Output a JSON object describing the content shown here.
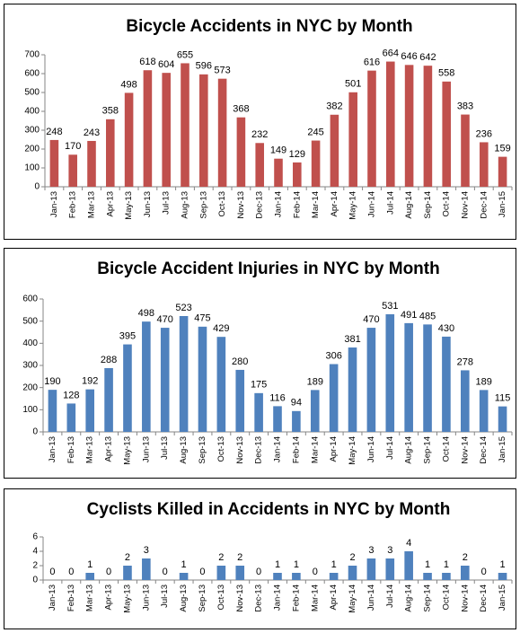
{
  "chart_data": [
    {
      "type": "bar",
      "title": "Bicycle Accidents in NYC by Month",
      "categories": [
        "Jan-13",
        "Feb-13",
        "Mar-13",
        "Apr-13",
        "May-13",
        "Jun-13",
        "Jul-13",
        "Aug-13",
        "Sep-13",
        "Oct-13",
        "Nov-13",
        "Dec-13",
        "Jan-14",
        "Feb-14",
        "Mar-14",
        "Apr-14",
        "May-14",
        "Jun-14",
        "Jul-14",
        "Aug-14",
        "Sep-14",
        "Oct-14",
        "Nov-14",
        "Dec-14",
        "Jan-15"
      ],
      "values": [
        248,
        170,
        243,
        358,
        498,
        618,
        604,
        655,
        596,
        573,
        368,
        232,
        149,
        129,
        245,
        382,
        501,
        616,
        664,
        646,
        642,
        558,
        383,
        236,
        159
      ],
      "color": "#c0504d",
      "ylim": [
        0,
        700
      ],
      "yticks": [
        0,
        100,
        200,
        300,
        400,
        500,
        600,
        700
      ],
      "grid": false
    },
    {
      "type": "bar",
      "title": "Bicycle Accident Injuries in NYC by Month",
      "categories": [
        "Jan-13",
        "Feb-13",
        "Mar-13",
        "Apr-13",
        "May-13",
        "Jun-13",
        "Jul-13",
        "Aug-13",
        "Sep-13",
        "Oct-13",
        "Nov-13",
        "Dec-13",
        "Jan-14",
        "Feb-14",
        "Mar-14",
        "Apr-14",
        "May-14",
        "Jun-14",
        "Jul-14",
        "Aug-14",
        "Sep-14",
        "Oct-14",
        "Nov-14",
        "Dec-14",
        "Jan-15"
      ],
      "values": [
        190,
        128,
        192,
        288,
        395,
        498,
        470,
        523,
        475,
        429,
        280,
        175,
        116,
        94,
        189,
        306,
        381,
        470,
        531,
        491,
        485,
        430,
        278,
        189,
        115
      ],
      "color": "#4f81bd",
      "ylim": [
        0,
        600
      ],
      "yticks": [
        0,
        100,
        200,
        300,
        400,
        500,
        600
      ],
      "grid": false
    },
    {
      "type": "bar",
      "title": "Cyclists Killed in Accidents in NYC by Month",
      "categories": [
        "Jan-13",
        "Feb-13",
        "Mar-13",
        "Apr-13",
        "May-13",
        "Jun-13",
        "Jul-13",
        "Aug-13",
        "Sep-13",
        "Oct-13",
        "Nov-13",
        "Dec-13",
        "Jan-14",
        "Feb-14",
        "Mar-14",
        "Apr-14",
        "May-14",
        "Jun-14",
        "Jul-14",
        "Aug-14",
        "Sep-14",
        "Oct-14",
        "Nov-14",
        "Dec-14",
        "Jan-15"
      ],
      "values": [
        0,
        0,
        1,
        0,
        2,
        3,
        0,
        1,
        0,
        2,
        2,
        0,
        1,
        1,
        0,
        1,
        2,
        3,
        3,
        4,
        1,
        1,
        2,
        0,
        1
      ],
      "color": "#4f81bd",
      "ylim": [
        0,
        6
      ],
      "yticks": [
        0,
        2,
        4,
        6
      ],
      "grid": false
    }
  ]
}
